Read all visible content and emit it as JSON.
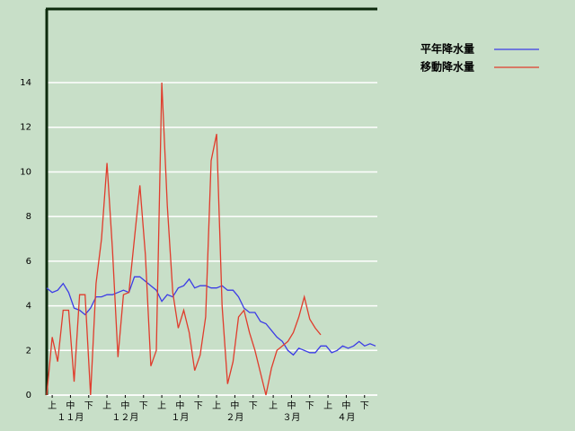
{
  "chart_data": {
    "type": "line",
    "x": [
      0,
      3,
      6,
      9,
      12,
      15,
      18,
      21,
      24,
      27,
      30,
      33,
      36,
      39,
      42,
      45,
      48,
      51,
      54,
      57,
      60,
      63,
      66,
      69,
      72,
      75,
      78,
      81,
      84,
      87,
      90,
      93,
      96,
      99,
      102,
      105,
      108,
      111,
      114,
      117,
      120,
      123,
      126,
      129,
      132,
      135,
      138,
      141,
      144,
      147,
      150,
      153,
      156,
      159,
      162,
      165,
      168,
      171,
      174,
      177,
      180
    ],
    "series": [
      {
        "name": "平年降水量",
        "color": "#3c3ce6",
        "values": [
          4.8,
          4.6,
          4.7,
          5.0,
          4.6,
          3.9,
          3.8,
          3.6,
          3.9,
          4.4,
          4.4,
          4.5,
          4.5,
          4.6,
          4.7,
          4.6,
          5.3,
          5.3,
          5.1,
          4.9,
          4.7,
          4.2,
          4.5,
          4.4,
          4.8,
          4.9,
          5.2,
          4.8,
          4.9,
          4.9,
          4.8,
          4.8,
          4.9,
          4.7,
          4.7,
          4.4,
          3.9,
          3.7,
          3.7,
          3.3,
          3.2,
          2.9,
          2.6,
          2.4,
          2.0,
          1.8,
          2.1,
          2.0,
          1.9,
          1.9,
          2.2,
          2.2,
          1.9,
          2.0,
          2.2,
          2.1,
          2.2,
          2.4,
          2.2,
          2.3,
          2.2
        ]
      },
      {
        "name": "移動降水量",
        "color": "#e03c2c",
        "values": [
          0,
          2.6,
          1.5,
          3.8,
          3.8,
          0.6,
          4.5,
          4.5,
          0,
          5.0,
          7.0,
          10.4,
          6.5,
          1.7,
          4.5,
          4.6,
          7.0,
          9.4,
          6.3,
          1.3,
          2.0,
          14.0,
          8.5,
          4.6,
          3.0,
          3.8,
          2.8,
          1.1,
          1.8,
          3.5,
          10.5,
          11.7,
          4.0,
          0.5,
          1.5,
          3.5,
          3.8,
          2.8,
          2.0,
          1.0,
          0,
          1.2,
          2.0,
          2.2,
          2.4,
          2.8,
          3.5,
          4.4,
          3.4,
          3.0,
          2.7,
          null,
          null,
          null,
          null,
          null,
          null,
          null,
          null,
          null,
          null
        ]
      }
    ],
    "xlim": [
      0,
      181
    ],
    "xticks": [
      {
        "value": 3,
        "label": "上"
      },
      {
        "value": 13,
        "label": "中"
      },
      {
        "value": 23,
        "label": "下"
      },
      {
        "value": 33,
        "label": "上"
      },
      {
        "value": 43,
        "label": "中"
      },
      {
        "value": 53,
        "label": "下"
      },
      {
        "value": 63,
        "label": "上"
      },
      {
        "value": 73,
        "label": "中"
      },
      {
        "value": 83,
        "label": "下"
      },
      {
        "value": 93,
        "label": "上"
      },
      {
        "value": 103,
        "label": "中"
      },
      {
        "value": 113,
        "label": "下"
      },
      {
        "value": 124,
        "label": "上"
      },
      {
        "value": 134,
        "label": "中"
      },
      {
        "value": 144,
        "label": "下"
      },
      {
        "value": 154,
        "label": "上"
      },
      {
        "value": 164,
        "label": "中"
      },
      {
        "value": 174,
        "label": "下"
      }
    ],
    "month_labels": [
      {
        "value": 13,
        "label": "１１月"
      },
      {
        "value": 43,
        "label": "１２月"
      },
      {
        "value": 73,
        "label": "１月"
      },
      {
        "value": 103,
        "label": "２月"
      },
      {
        "value": 134,
        "label": "３月"
      },
      {
        "value": 164,
        "label": "４月"
      }
    ],
    "ylim": [
      0,
      17.3
    ],
    "yticks": [
      0,
      2,
      4,
      6,
      8,
      10,
      12,
      14
    ],
    "grid": true
  }
}
